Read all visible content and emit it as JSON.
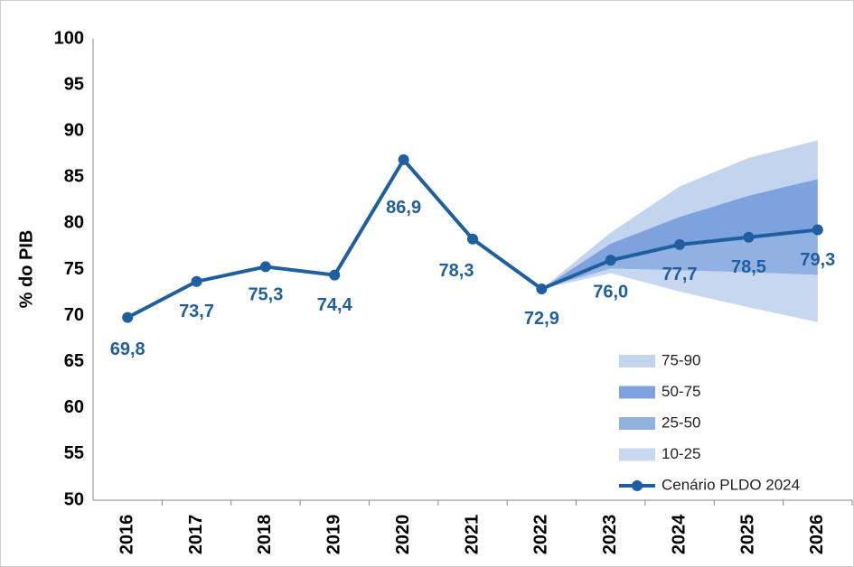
{
  "chart_data": {
    "type": "line",
    "y_label": "% do PIB",
    "categories": [
      "2016",
      "2017",
      "2018",
      "2019",
      "2020",
      "2021",
      "2022",
      "2023",
      "2024",
      "2025",
      "2026"
    ],
    "ylim": [
      50,
      100
    ],
    "yticks": [
      50,
      55,
      60,
      65,
      70,
      75,
      80,
      85,
      90,
      95,
      100
    ],
    "series": [
      {
        "name": "Cenário PLDO 2024",
        "color": "#1f5f9f",
        "values": [
          69.8,
          73.7,
          75.3,
          74.4,
          86.9,
          78.3,
          72.9,
          76.0,
          77.7,
          78.5,
          79.3
        ],
        "value_labels": [
          "69,8",
          "73,7",
          "75,3",
          "74,4",
          "86,9",
          "78,3",
          "72,9",
          "76,0",
          "77,7",
          "78,5",
          "79,3"
        ]
      }
    ],
    "bands": [
      {
        "name": "75-90",
        "color": "#c3d4ef",
        "x": [
          "2022",
          "2023",
          "2024",
          "2025",
          "2026"
        ],
        "lower": [
          72.9,
          77.8,
          80.7,
          83.0,
          84.8
        ],
        "upper": [
          72.9,
          79.0,
          84.0,
          87.1,
          89.0
        ]
      },
      {
        "name": "50-75",
        "color": "#7ea2dd",
        "x": [
          "2022",
          "2023",
          "2024",
          "2025",
          "2026"
        ],
        "lower": [
          72.9,
          76.0,
          77.7,
          78.5,
          79.3
        ],
        "upper": [
          72.9,
          77.8,
          80.7,
          83.0,
          84.8
        ]
      },
      {
        "name": "25-50",
        "color": "#92b1e3",
        "x": [
          "2022",
          "2023",
          "2024",
          "2025",
          "2026"
        ],
        "lower": [
          72.9,
          75.1,
          74.9,
          74.7,
          74.4
        ],
        "upper": [
          72.9,
          76.0,
          77.7,
          78.5,
          79.3
        ]
      },
      {
        "name": "10-25",
        "color": "#c8d7f0",
        "x": [
          "2022",
          "2023",
          "2024",
          "2025",
          "2026"
        ],
        "lower": [
          72.9,
          74.6,
          72.6,
          70.9,
          69.3
        ],
        "upper": [
          72.9,
          75.1,
          74.9,
          74.7,
          74.4
        ]
      }
    ]
  }
}
